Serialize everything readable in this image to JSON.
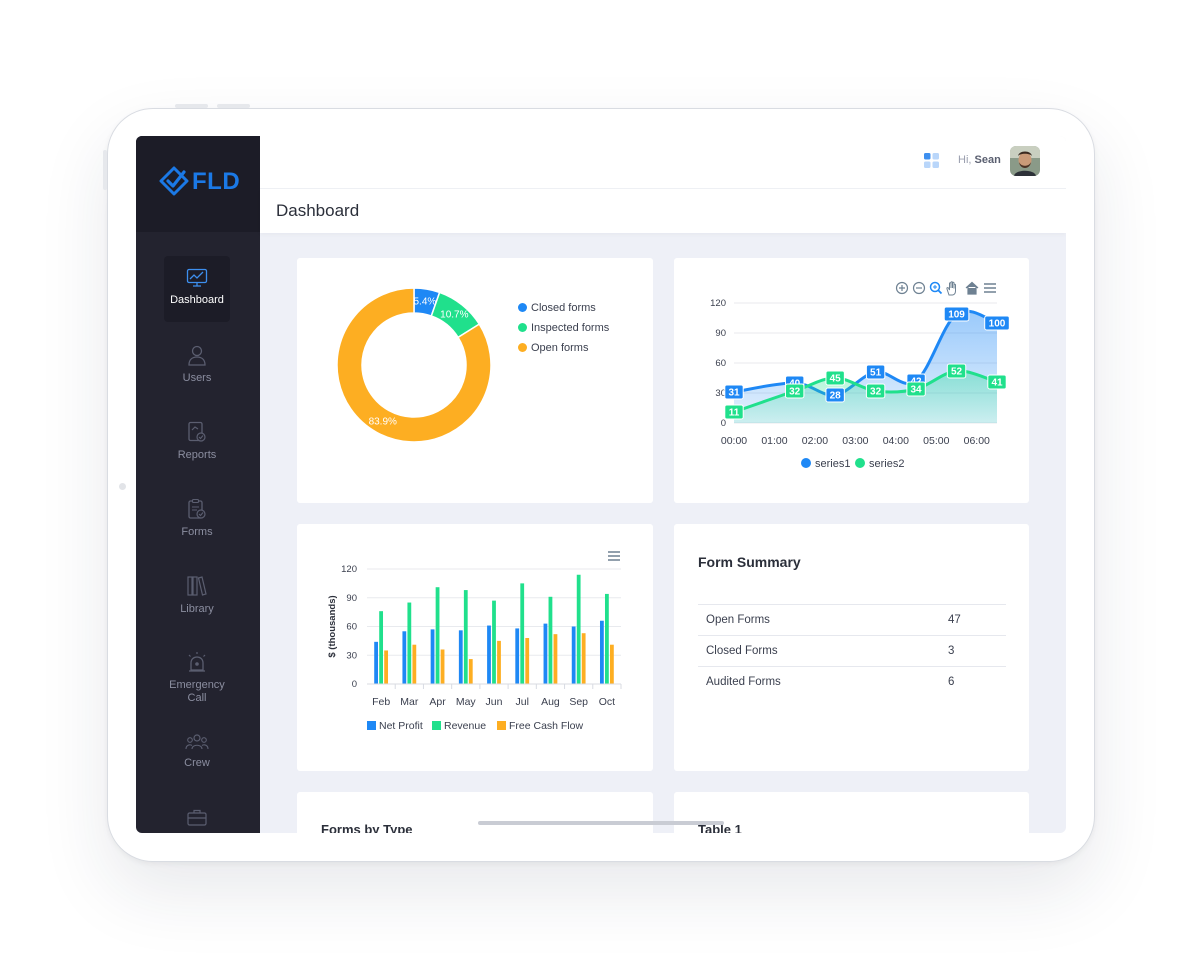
{
  "app": {
    "logo_text": "FLD"
  },
  "header": {
    "greeting": "Hi,",
    "user_name": "Sean"
  },
  "page": {
    "title": "Dashboard"
  },
  "sidebar": {
    "items": [
      {
        "label": "Dashboard",
        "icon": "dashboard-icon",
        "active": true
      },
      {
        "label": "Users",
        "icon": "user-icon"
      },
      {
        "label": "Reports",
        "icon": "reports-icon"
      },
      {
        "label": "Forms",
        "icon": "forms-icon"
      },
      {
        "label": "Library",
        "icon": "library-icon"
      },
      {
        "label": "Emergency Call",
        "icon": "alarm-icon"
      },
      {
        "label": "Crew",
        "icon": "crew-icon"
      },
      {
        "label": "",
        "icon": "briefcase-icon"
      }
    ]
  },
  "chart_data": [
    {
      "type": "pie",
      "variant": "donut",
      "labels": [
        "Closed forms",
        "Inspected forms",
        "Open forms"
      ],
      "values": [
        5.4,
        10.7,
        83.9
      ],
      "value_labels": [
        "5.4%",
        "10.7%",
        "83.9%"
      ],
      "colors": [
        "#1e88f5",
        "#20e08c",
        "#fdae22"
      ],
      "legend": "right"
    },
    {
      "type": "area",
      "x": [
        "00:00",
        "01:00",
        "02:00",
        "03:00",
        "04:00",
        "05:00",
        "06:00"
      ],
      "series": [
        {
          "name": "series1",
          "x_hours": [
            0,
            1.5,
            2.5,
            3.5,
            4.5,
            5.5,
            6.5
          ],
          "values": [
            31,
            40,
            28,
            51,
            42,
            109,
            100
          ],
          "color": "#1e88f5"
        },
        {
          "name": "series2",
          "x_hours": [
            0,
            1.5,
            2.5,
            3.5,
            4.5,
            5.5,
            6.5
          ],
          "values": [
            11,
            32,
            45,
            32,
            34,
            52,
            41
          ],
          "color": "#20e08c"
        }
      ],
      "yticks": [
        0,
        30,
        60,
        90,
        120
      ],
      "ylim": [
        0,
        120
      ],
      "xlim": [
        0,
        6.5
      ],
      "legend": "bottom"
    },
    {
      "type": "bar",
      "categories": [
        "Feb",
        "Mar",
        "Apr",
        "May",
        "Jun",
        "Jul",
        "Aug",
        "Sep",
        "Oct"
      ],
      "series": [
        {
          "name": "Net Profit",
          "values": [
            44,
            55,
            57,
            56,
            61,
            58,
            63,
            60,
            66
          ],
          "color": "#1e88f5"
        },
        {
          "name": "Revenue",
          "values": [
            76,
            85,
            101,
            98,
            87,
            105,
            91,
            114,
            94
          ],
          "color": "#20e08c"
        },
        {
          "name": "Free Cash Flow",
          "values": [
            35,
            41,
            36,
            26,
            45,
            48,
            52,
            53,
            41
          ],
          "color": "#fdae22"
        }
      ],
      "ylabel": "$ (thousands)",
      "yticks": [
        0,
        30,
        60,
        90,
        120
      ],
      "ylim": [
        0,
        120
      ],
      "legend": "bottom"
    }
  ],
  "form_summary": {
    "title": "Form Summary",
    "rows": [
      {
        "label": "Open Forms",
        "value": "47"
      },
      {
        "label": "Closed Forms",
        "value": "3"
      },
      {
        "label": "Audited Forms",
        "value": "6"
      }
    ]
  },
  "bottom_cards": {
    "left_title": "Forms by Type",
    "right_title": "Table 1"
  }
}
